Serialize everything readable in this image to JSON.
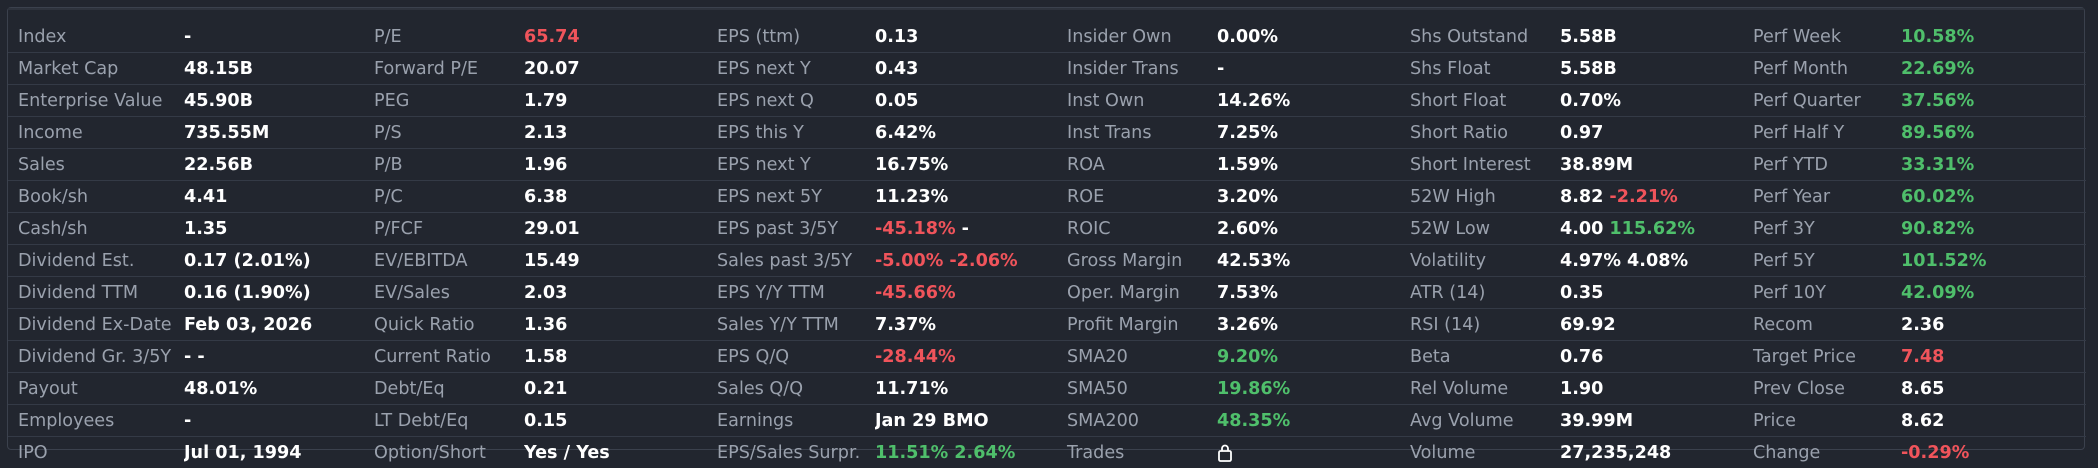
{
  "colors": {
    "positive": "#4fbf6b",
    "negative": "#f0545b",
    "neutral": "#ffffff",
    "label": "#9aa1ad"
  },
  "rows": [
    [
      [
        "Index",
        [
          [
            "-",
            "neutral"
          ]
        ]
      ],
      [
        "P/E",
        [
          [
            "65.74",
            "neg"
          ]
        ]
      ],
      [
        "EPS (ttm)",
        [
          [
            "0.13",
            "neutral"
          ]
        ]
      ],
      [
        "Insider Own",
        [
          [
            "0.00%",
            "neutral"
          ]
        ]
      ],
      [
        "Shs Outstand",
        [
          [
            "5.58B",
            "neutral"
          ]
        ]
      ],
      [
        "Perf Week",
        [
          [
            "10.58%",
            "pos"
          ]
        ]
      ]
    ],
    [
      [
        "Market Cap",
        [
          [
            "48.15B",
            "neutral"
          ]
        ]
      ],
      [
        "Forward P/E",
        [
          [
            "20.07",
            "neutral"
          ]
        ]
      ],
      [
        "EPS next Y",
        [
          [
            "0.43",
            "neutral"
          ]
        ]
      ],
      [
        "Insider Trans",
        [
          [
            "-",
            "neutral"
          ]
        ]
      ],
      [
        "Shs Float",
        [
          [
            "5.58B",
            "neutral"
          ]
        ]
      ],
      [
        "Perf Month",
        [
          [
            "22.69%",
            "pos"
          ]
        ]
      ]
    ],
    [
      [
        "Enterprise Value",
        [
          [
            "45.90B",
            "neutral"
          ]
        ]
      ],
      [
        "PEG",
        [
          [
            "1.79",
            "neutral"
          ]
        ]
      ],
      [
        "EPS next Q",
        [
          [
            "0.05",
            "neutral"
          ]
        ]
      ],
      [
        "Inst Own",
        [
          [
            "14.26%",
            "neutral"
          ]
        ]
      ],
      [
        "Short Float",
        [
          [
            "0.70%",
            "neutral"
          ]
        ]
      ],
      [
        "Perf Quarter",
        [
          [
            "37.56%",
            "pos"
          ]
        ]
      ]
    ],
    [
      [
        "Income",
        [
          [
            "735.55M",
            "neutral"
          ]
        ]
      ],
      [
        "P/S",
        [
          [
            "2.13",
            "neutral"
          ]
        ]
      ],
      [
        "EPS this Y",
        [
          [
            "6.42%",
            "neutral"
          ]
        ]
      ],
      [
        "Inst Trans",
        [
          [
            "7.25%",
            "neutral"
          ]
        ]
      ],
      [
        "Short Ratio",
        [
          [
            "0.97",
            "neutral"
          ]
        ]
      ],
      [
        "Perf Half Y",
        [
          [
            "89.56%",
            "pos"
          ]
        ]
      ]
    ],
    [
      [
        "Sales",
        [
          [
            "22.56B",
            "neutral"
          ]
        ]
      ],
      [
        "P/B",
        [
          [
            "1.96",
            "neutral"
          ]
        ]
      ],
      [
        "EPS next Y",
        [
          [
            "16.75%",
            "neutral"
          ]
        ]
      ],
      [
        "ROA",
        [
          [
            "1.59%",
            "neutral"
          ]
        ]
      ],
      [
        "Short Interest",
        [
          [
            "38.89M",
            "neutral"
          ]
        ]
      ],
      [
        "Perf YTD",
        [
          [
            "33.31%",
            "pos"
          ]
        ]
      ]
    ],
    [
      [
        "Book/sh",
        [
          [
            "4.41",
            "neutral"
          ]
        ]
      ],
      [
        "P/C",
        [
          [
            "6.38",
            "neutral"
          ]
        ]
      ],
      [
        "EPS next 5Y",
        [
          [
            "11.23%",
            "neutral"
          ]
        ]
      ],
      [
        "ROE",
        [
          [
            "3.20%",
            "neutral"
          ]
        ]
      ],
      [
        "52W High",
        [
          [
            "8.82",
            "neutral"
          ],
          [
            "-2.21%",
            "neg"
          ]
        ]
      ],
      [
        "Perf Year",
        [
          [
            "60.02%",
            "pos"
          ]
        ]
      ]
    ],
    [
      [
        "Cash/sh",
        [
          [
            "1.35",
            "neutral"
          ]
        ]
      ],
      [
        "P/FCF",
        [
          [
            "29.01",
            "neutral"
          ]
        ]
      ],
      [
        "EPS past 3/5Y",
        [
          [
            "-45.18%",
            "neg"
          ],
          [
            "-",
            "neutral"
          ]
        ]
      ],
      [
        "ROIC",
        [
          [
            "2.60%",
            "neutral"
          ]
        ]
      ],
      [
        "52W Low",
        [
          [
            "4.00",
            "neutral"
          ],
          [
            "115.62%",
            "pos"
          ]
        ]
      ],
      [
        "Perf 3Y",
        [
          [
            "90.82%",
            "pos"
          ]
        ]
      ]
    ],
    [
      [
        "Dividend Est.",
        [
          [
            "0.17 (2.01%)",
            "neutral"
          ]
        ]
      ],
      [
        "EV/EBITDA",
        [
          [
            "15.49",
            "neutral"
          ]
        ]
      ],
      [
        "Sales past 3/5Y",
        [
          [
            "-5.00%",
            "neg"
          ],
          [
            "-2.06%",
            "neg"
          ]
        ]
      ],
      [
        "Gross Margin",
        [
          [
            "42.53%",
            "neutral"
          ]
        ]
      ],
      [
        "Volatility",
        [
          [
            "4.97%",
            "neutral"
          ],
          [
            "4.08%",
            "neutral"
          ]
        ]
      ],
      [
        "Perf 5Y",
        [
          [
            "101.52%",
            "pos"
          ]
        ]
      ]
    ],
    [
      [
        "Dividend TTM",
        [
          [
            "0.16 (1.90%)",
            "neutral"
          ]
        ]
      ],
      [
        "EV/Sales",
        [
          [
            "2.03",
            "neutral"
          ]
        ]
      ],
      [
        "EPS Y/Y TTM",
        [
          [
            "-45.66%",
            "neg"
          ]
        ]
      ],
      [
        "Oper. Margin",
        [
          [
            "7.53%",
            "neutral"
          ]
        ]
      ],
      [
        "ATR (14)",
        [
          [
            "0.35",
            "neutral"
          ]
        ]
      ],
      [
        "Perf 10Y",
        [
          [
            "42.09%",
            "pos"
          ]
        ]
      ]
    ],
    [
      [
        "Dividend Ex-Date",
        [
          [
            "Feb 03, 2026",
            "neutral"
          ]
        ]
      ],
      [
        "Quick Ratio",
        [
          [
            "1.36",
            "neutral"
          ]
        ]
      ],
      [
        "Sales Y/Y TTM",
        [
          [
            "7.37%",
            "neutral"
          ]
        ]
      ],
      [
        "Profit Margin",
        [
          [
            "3.26%",
            "neutral"
          ]
        ]
      ],
      [
        "RSI (14)",
        [
          [
            "69.92",
            "neutral"
          ]
        ]
      ],
      [
        "Recom",
        [
          [
            "2.36",
            "neutral"
          ]
        ]
      ]
    ],
    [
      [
        "Dividend Gr. 3/5Y",
        [
          [
            "-",
            "neutral"
          ],
          [
            "-",
            "neutral"
          ]
        ]
      ],
      [
        "Current Ratio",
        [
          [
            "1.58",
            "neutral"
          ]
        ]
      ],
      [
        "EPS Q/Q",
        [
          [
            "-28.44%",
            "neg"
          ]
        ]
      ],
      [
        "SMA20",
        [
          [
            "9.20%",
            "pos"
          ]
        ]
      ],
      [
        "Beta",
        [
          [
            "0.76",
            "neutral"
          ]
        ]
      ],
      [
        "Target Price",
        [
          [
            "7.48",
            "neg"
          ]
        ]
      ]
    ],
    [
      [
        "Payout",
        [
          [
            "48.01%",
            "neutral"
          ]
        ]
      ],
      [
        "Debt/Eq",
        [
          [
            "0.21",
            "neutral"
          ]
        ]
      ],
      [
        "Sales Q/Q",
        [
          [
            "11.71%",
            "neutral"
          ]
        ]
      ],
      [
        "SMA50",
        [
          [
            "19.86%",
            "pos"
          ]
        ]
      ],
      [
        "Rel Volume",
        [
          [
            "1.90",
            "neutral"
          ]
        ]
      ],
      [
        "Prev Close",
        [
          [
            "8.65",
            "neutral"
          ]
        ]
      ]
    ],
    [
      [
        "Employees",
        [
          [
            "-",
            "neutral"
          ]
        ]
      ],
      [
        "LT Debt/Eq",
        [
          [
            "0.15",
            "neutral"
          ]
        ]
      ],
      [
        "Earnings",
        [
          [
            "Jan 29 BMO",
            "neutral"
          ]
        ]
      ],
      [
        "SMA200",
        [
          [
            "48.35%",
            "pos"
          ]
        ]
      ],
      [
        "Avg Volume",
        [
          [
            "39.99M",
            "neutral"
          ]
        ]
      ],
      [
        "Price",
        [
          [
            "8.62",
            "neutral"
          ]
        ]
      ]
    ],
    [
      [
        "IPO",
        [
          [
            "Jul 01, 1994",
            "neutral"
          ]
        ]
      ],
      [
        "Option/Short",
        [
          [
            "Yes / Yes",
            "neutral"
          ]
        ]
      ],
      [
        "EPS/Sales Surpr.",
        [
          [
            "11.51%",
            "pos"
          ],
          [
            "2.64%",
            "pos"
          ]
        ]
      ],
      [
        "Trades",
        [
          [
            "lock-icon",
            "icon"
          ]
        ]
      ],
      [
        "Volume",
        [
          [
            "27,235,248",
            "neutral"
          ]
        ]
      ],
      [
        "Change",
        [
          [
            "-0.29%",
            "neg"
          ]
        ]
      ]
    ]
  ]
}
